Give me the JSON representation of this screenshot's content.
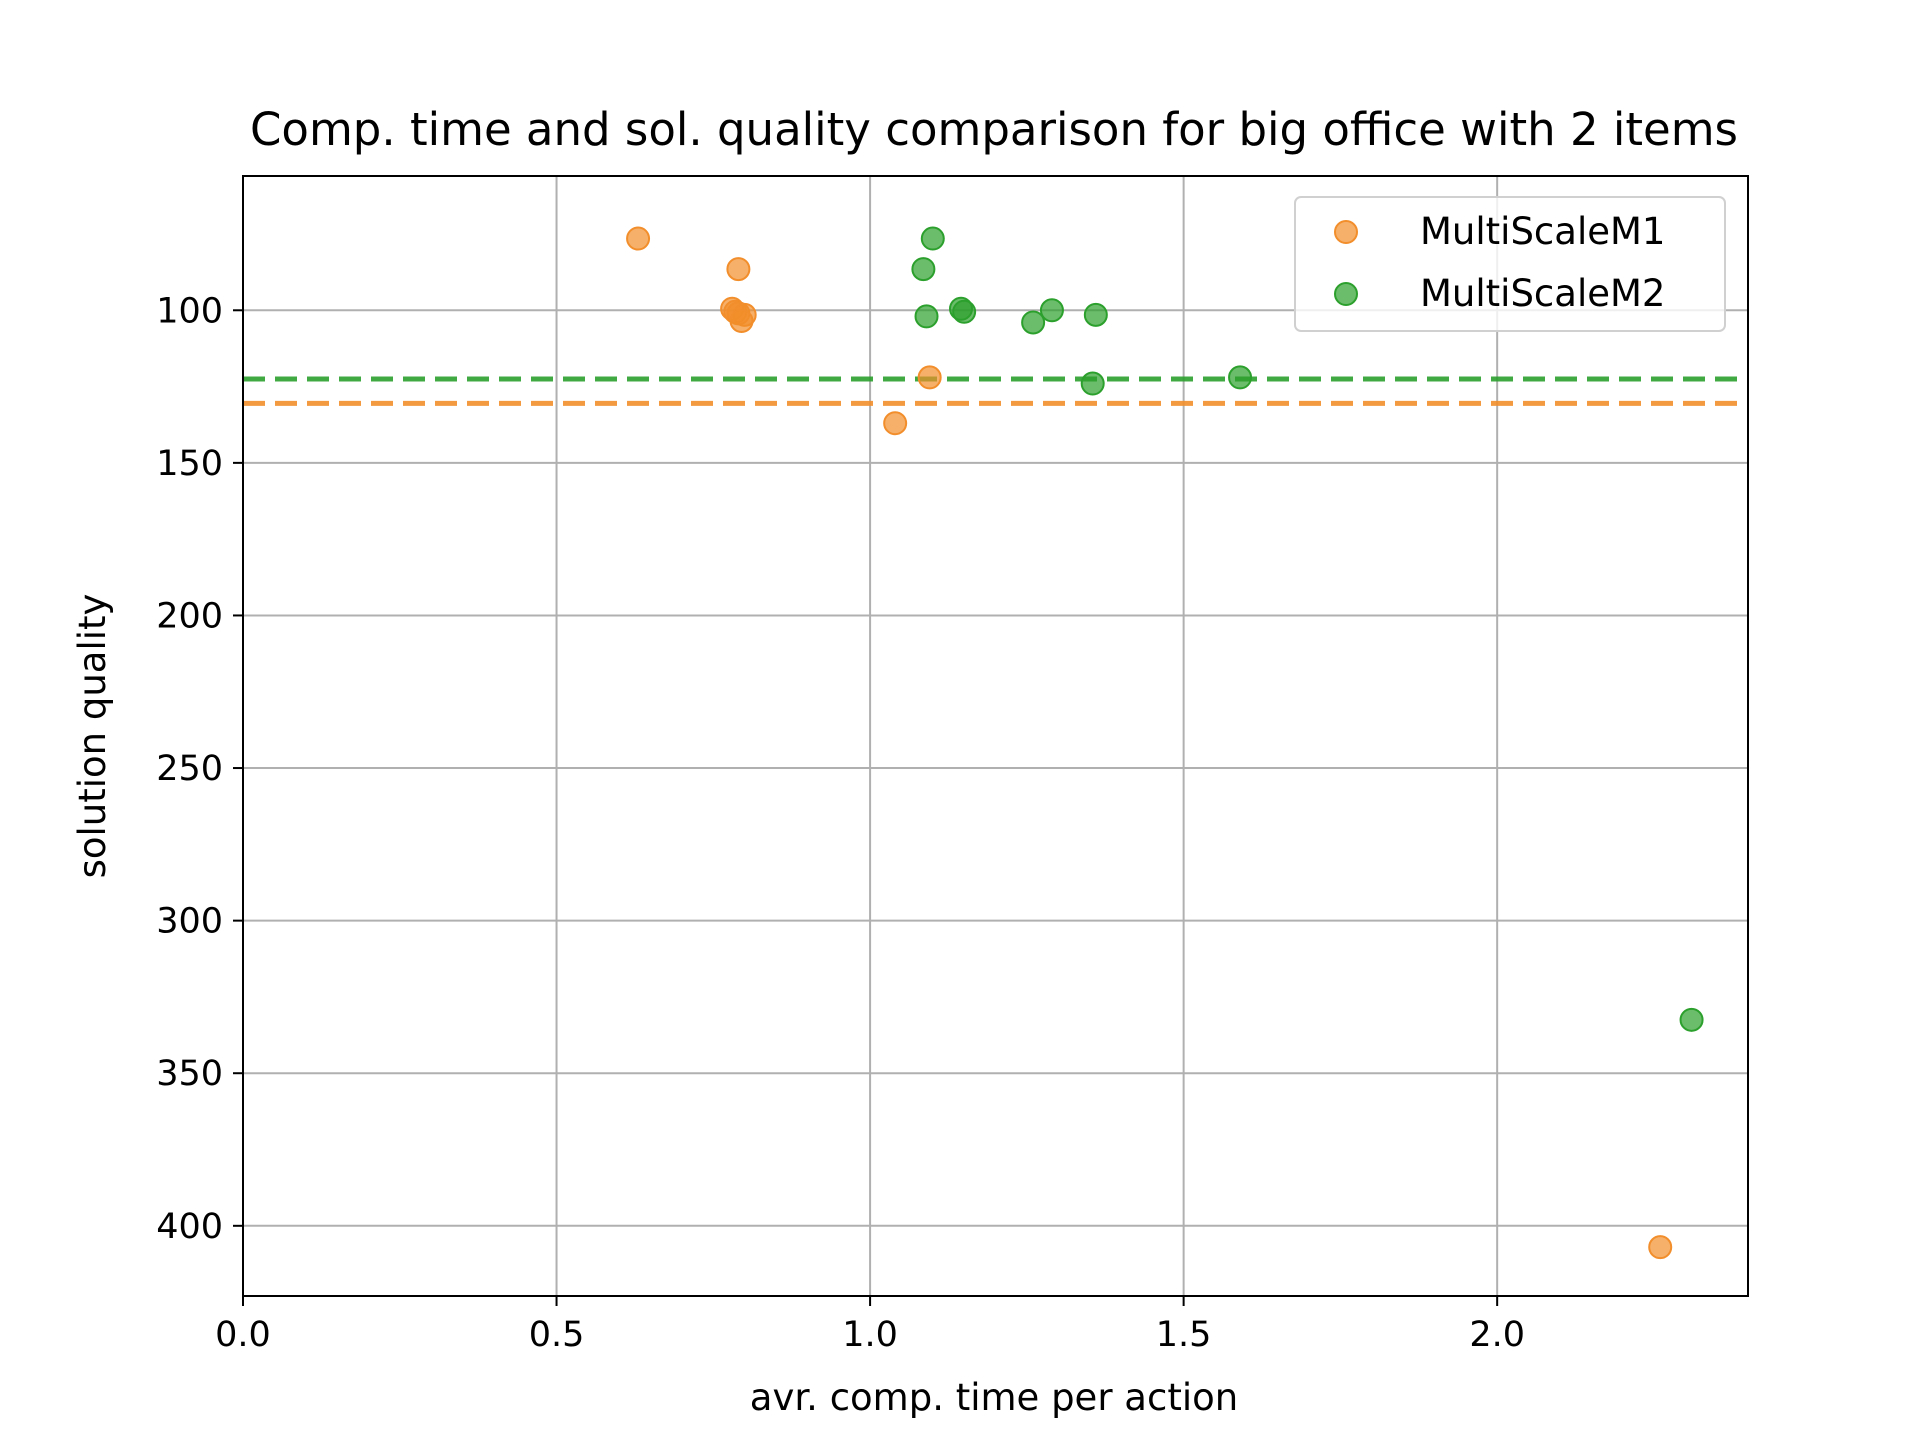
{
  "chart_data": {
    "type": "scatter",
    "title": "Comp. time and sol. quality comparison for big office with 2 items",
    "xlabel": "avr. comp. time per action",
    "ylabel": "solution quality",
    "xlim": [
      0.0,
      2.4
    ],
    "ylim": [
      423,
      56
    ],
    "y_inverted": true,
    "grid": true,
    "legend_position": "top-right",
    "x_ticks": [
      {
        "value": 0.0,
        "label": "0.0"
      },
      {
        "value": 0.5,
        "label": "0.5"
      },
      {
        "value": 1.0,
        "label": "1.0"
      },
      {
        "value": 1.5,
        "label": "1.5"
      },
      {
        "value": 2.0,
        "label": "2.0"
      }
    ],
    "y_ticks": [
      {
        "value": 100,
        "label": "100"
      },
      {
        "value": 150,
        "label": "150"
      },
      {
        "value": 200,
        "label": "200"
      },
      {
        "value": 250,
        "label": "250"
      },
      {
        "value": 300,
        "label": "300"
      },
      {
        "value": 350,
        "label": "350"
      },
      {
        "value": 400,
        "label": "400"
      }
    ],
    "series": [
      {
        "name": "MultiScaleM1",
        "color": "#f28e2b",
        "points": [
          {
            "x": 0.63,
            "y": 76.5
          },
          {
            "x": 0.79,
            "y": 86.5
          },
          {
            "x": 0.78,
            "y": 99.5
          },
          {
            "x": 0.785,
            "y": 100.5
          },
          {
            "x": 0.79,
            "y": 101
          },
          {
            "x": 0.8,
            "y": 101.5
          },
          {
            "x": 0.795,
            "y": 103.5
          },
          {
            "x": 1.095,
            "y": 122
          },
          {
            "x": 1.04,
            "y": 137
          },
          {
            "x": 2.26,
            "y": 407
          }
        ],
        "mean_line": 130.5
      },
      {
        "name": "MultiScaleM2",
        "color": "#2ca02c",
        "points": [
          {
            "x": 1.1,
            "y": 76.5
          },
          {
            "x": 1.085,
            "y": 86.5
          },
          {
            "x": 1.145,
            "y": 99.5
          },
          {
            "x": 1.15,
            "y": 100.5
          },
          {
            "x": 1.09,
            "y": 102
          },
          {
            "x": 1.26,
            "y": 104
          },
          {
            "x": 1.29,
            "y": 100
          },
          {
            "x": 1.36,
            "y": 101.5
          },
          {
            "x": 1.355,
            "y": 124
          },
          {
            "x": 1.59,
            "y": 122
          },
          {
            "x": 2.31,
            "y": 332.5
          }
        ],
        "mean_line": 122.5
      }
    ]
  }
}
